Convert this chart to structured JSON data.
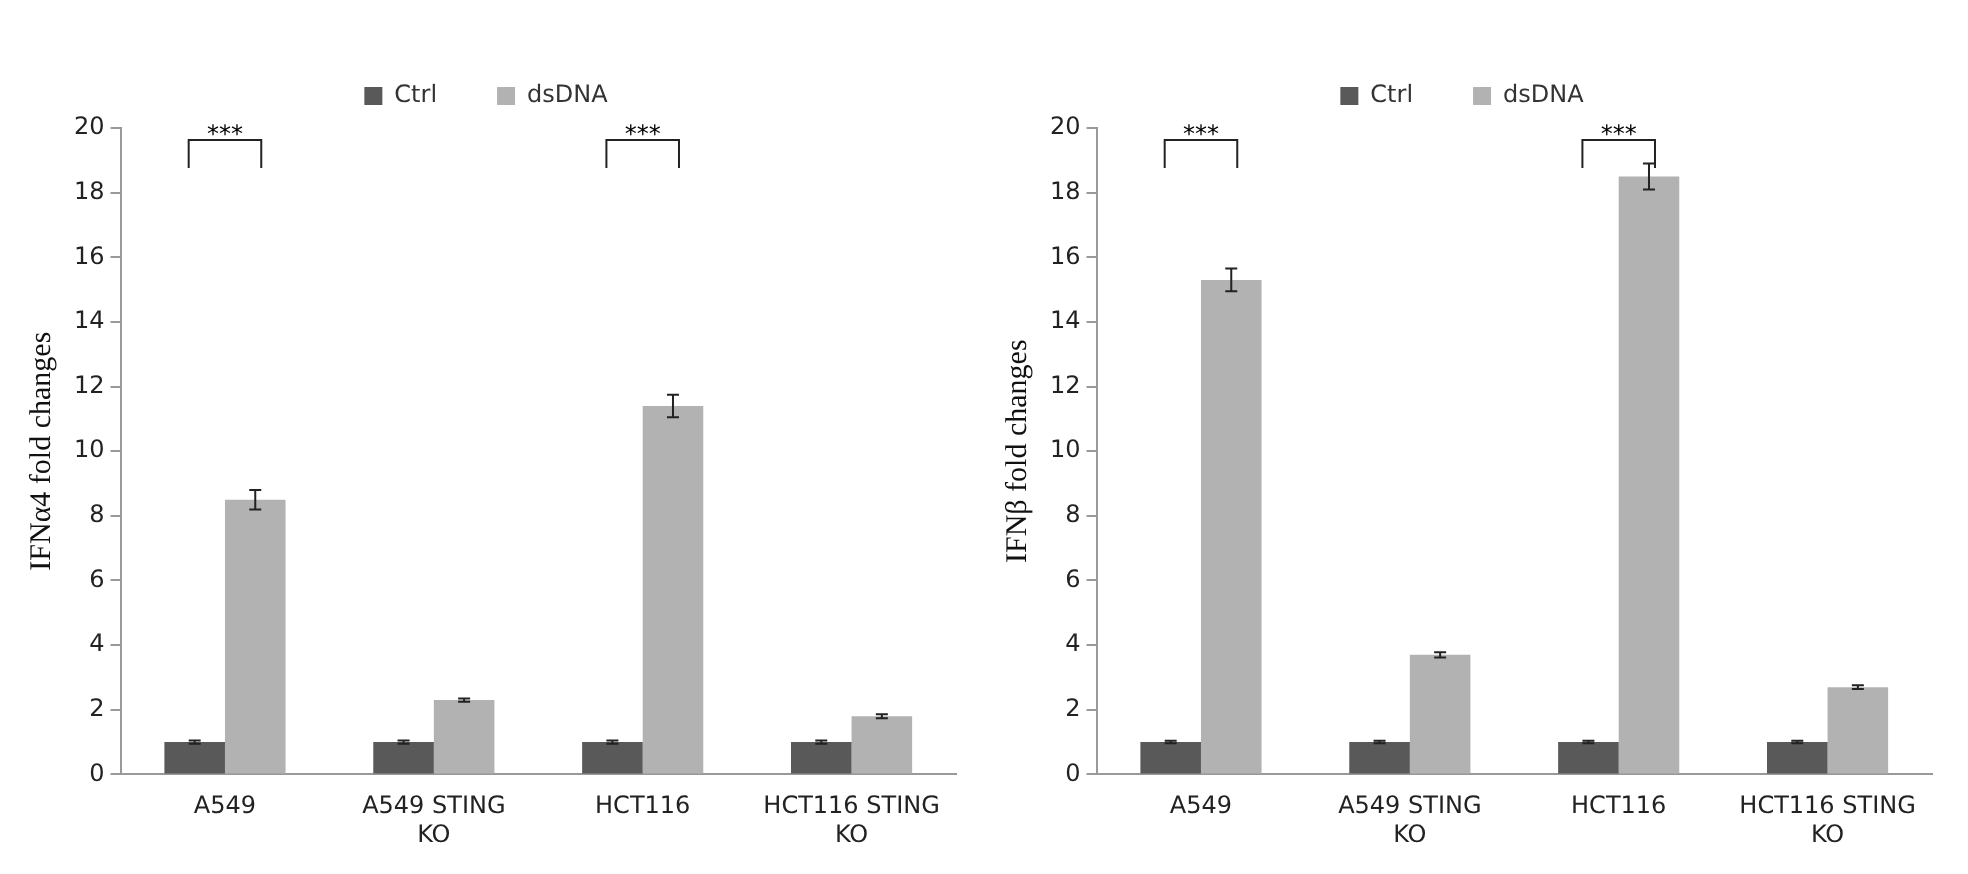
{
  "chart_data": [
    {
      "type": "bar",
      "ylabel": "IFNα4 fold changes",
      "categories": [
        "A549",
        "A549 STING KO",
        "HCT116",
        "HCT116 STING KO"
      ],
      "series": [
        {
          "name": "Ctrl",
          "color": "#595959",
          "values": [
            1,
            1,
            1,
            1
          ],
          "errors": [
            0.05,
            0.05,
            0.05,
            0.05
          ]
        },
        {
          "name": "dsDNA",
          "color": "#b2b2b2",
          "values": [
            8.5,
            2.3,
            11.4,
            1.8
          ],
          "errors": [
            0.3,
            0.05,
            0.35,
            0.06
          ]
        }
      ],
      "ylim": [
        0,
        20
      ],
      "yticks": [
        0,
        2,
        4,
        6,
        8,
        10,
        12,
        14,
        16,
        18,
        20
      ],
      "grid": false,
      "legend": "top",
      "annotations": [
        "***",
        "***"
      ]
    },
    {
      "type": "bar",
      "ylabel": "IFNβ fold changes",
      "categories": [
        "A549",
        "A549 STING KO",
        "HCT116",
        "HCT116 STING KO"
      ],
      "series": [
        {
          "name": "Ctrl",
          "color": "#595959",
          "values": [
            1,
            1,
            1,
            1
          ],
          "errors": [
            0.04,
            0.04,
            0.04,
            0.04
          ]
        },
        {
          "name": "dsDNA",
          "color": "#b2b2b2",
          "values": [
            15.3,
            3.7,
            18.5,
            2.7
          ],
          "errors": [
            0.35,
            0.08,
            0.4,
            0.06
          ]
        }
      ],
      "ylim": [
        0,
        20
      ],
      "yticks": [
        0,
        2,
        4,
        6,
        8,
        10,
        12,
        14,
        16,
        18,
        20
      ],
      "grid": false,
      "legend": "top",
      "annotations": [
        "***",
        "***"
      ]
    }
  ]
}
